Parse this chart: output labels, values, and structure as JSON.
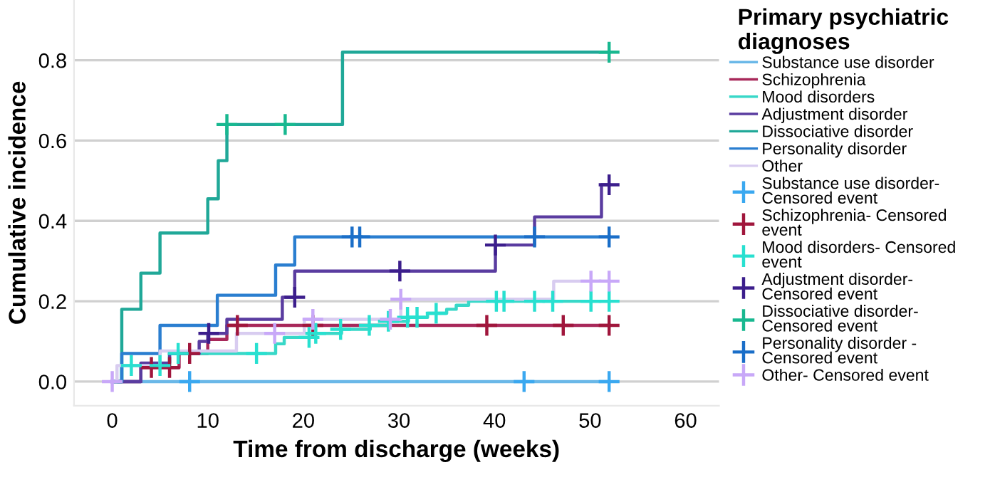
{
  "chart_data": {
    "type": "step",
    "xlabel": "Time from discharge (weeks)",
    "ylabel": "Cumulative incidence",
    "legend_title": "Primary psychiatric\ndiagnoses",
    "xlim": [
      -4,
      63.5
    ],
    "ylim": [
      -0.06,
      0.95
    ],
    "xticks": [
      0,
      10,
      20,
      30,
      40,
      50,
      60
    ],
    "yticks": [
      {
        "value": 0,
        "label": "0.0"
      },
      {
        "value": 0.2,
        "label": "0.2"
      },
      {
        "value": 0.4,
        "label": "0.4"
      },
      {
        "value": 0.6,
        "label": "0.6"
      },
      {
        "value": 0.8,
        "label": "0.8"
      }
    ],
    "grid": "y",
    "legend": "right",
    "series": [
      {
        "name": "Substance use disorder",
        "color": "#6ab8e8",
        "x": [
          0,
          52
        ],
        "values": [
          0,
          0
        ]
      },
      {
        "name": "Schizophrenia",
        "color": "#a8285a",
        "x": [
          0,
          3,
          7,
          10,
          12,
          52
        ],
        "values": [
          0,
          0.035,
          0.07,
          0.105,
          0.14,
          0.14
        ]
      },
      {
        "name": "Mood disorders",
        "color": "#38d8c8",
        "x": [
          0,
          1,
          6,
          17.1,
          18,
          21,
          24,
          27,
          29,
          31,
          33,
          35,
          36,
          37.3,
          52
        ],
        "values": [
          0,
          0.04,
          0.07,
          0.094,
          0.11,
          0.12,
          0.13,
          0.14,
          0.15,
          0.16,
          0.17,
          0.18,
          0.19,
          0.2,
          0.2
        ]
      },
      {
        "name": "Adjustment disorder",
        "color": "#5a3ca0",
        "x": [
          0,
          3,
          6,
          9.1,
          10,
          12,
          17.8,
          19.1,
          40.1,
          44.2,
          51.2,
          52
        ],
        "values": [
          0,
          0.046,
          0.07,
          0.1,
          0.12,
          0.155,
          0.21,
          0.275,
          0.34,
          0.41,
          0.49,
          0.49
        ]
      },
      {
        "name": "Dissociative disorder",
        "color": "#20a898",
        "x": [
          0,
          1,
          3,
          5,
          10,
          11.1,
          12,
          24.1,
          52
        ],
        "values": [
          0,
          0.18,
          0.27,
          0.37,
          0.455,
          0.55,
          0.64,
          0.82,
          0.82
        ]
      },
      {
        "name": "Personality disorder",
        "color": "#2a7ed0",
        "x": [
          0,
          1,
          5,
          11,
          17.1,
          19.1,
          52
        ],
        "values": [
          0,
          0.07,
          0.14,
          0.215,
          0.29,
          0.36,
          0.36
        ]
      },
      {
        "name": "Other",
        "color": "#d8ccf0",
        "x": [
          0,
          0.5,
          5,
          13,
          20.1,
          30.2,
          46.2,
          52
        ],
        "values": [
          0,
          0.04,
          0.076,
          0.12,
          0.155,
          0.205,
          0.25,
          0.25
        ]
      },
      {
        "name": "Substance use disorder-\nCensored event",
        "type": "scatter",
        "marker": "cross",
        "color": "#3aa8f0",
        "x": [
          8.1,
          43.1,
          52
        ],
        "values": [
          0,
          0,
          0
        ]
      },
      {
        "name": "Schizophrenia- Censored\nevent",
        "type": "scatter",
        "marker": "cross",
        "color": "#a0163c",
        "x": [
          4.1,
          6,
          8.1,
          13.1,
          21,
          39.2,
          47.2,
          52
        ],
        "values": [
          0.035,
          0.035,
          0.07,
          0.14,
          0.14,
          0.14,
          0.14,
          0.14
        ]
      },
      {
        "name": "Mood disorders- Censored\nevent",
        "type": "scatter",
        "marker": "cross",
        "color": "#28e0d0",
        "x": [
          2,
          5,
          6.9,
          15.1,
          20.6,
          21.3,
          23.9,
          26.9,
          28.9,
          30.9,
          31.9,
          33.9,
          40.2,
          41,
          44.2,
          46.1,
          50.1,
          52
        ],
        "values": [
          0.04,
          0.04,
          0.07,
          0.07,
          0.11,
          0.12,
          0.13,
          0.14,
          0.15,
          0.16,
          0.16,
          0.17,
          0.2,
          0.2,
          0.2,
          0.2,
          0.2,
          0.2
        ]
      },
      {
        "name": "Adjustment disorder-\nCensored event",
        "type": "scatter",
        "marker": "cross",
        "color": "#3c1e8c",
        "x": [
          10.1,
          19.1,
          30.1,
          40.1,
          52
        ],
        "values": [
          0.12,
          0.21,
          0.275,
          0.34,
          0.49
        ]
      },
      {
        "name": "Dissociative disorder-\nCensored event",
        "type": "scatter",
        "marker": "cross",
        "color": "#18b890",
        "x": [
          12,
          18.1,
          52
        ],
        "values": [
          0.64,
          0.64,
          0.82
        ]
      },
      {
        "name": "Personality disorder -\nCensored event",
        "type": "scatter",
        "marker": "cross",
        "color": "#1a6ec8",
        "x": [
          25.1,
          25.9,
          44.2,
          52
        ],
        "values": [
          0.36,
          0.36,
          0.36,
          0.36
        ]
      },
      {
        "name": "Other- Censored event",
        "type": "scatter",
        "marker": "cross",
        "color": "#c8a8f8",
        "x": [
          0,
          17,
          21,
          29.1,
          30.2,
          50.1,
          52
        ],
        "values": [
          0,
          0.12,
          0.155,
          0.155,
          0.205,
          0.25,
          0.25
        ]
      }
    ]
  }
}
